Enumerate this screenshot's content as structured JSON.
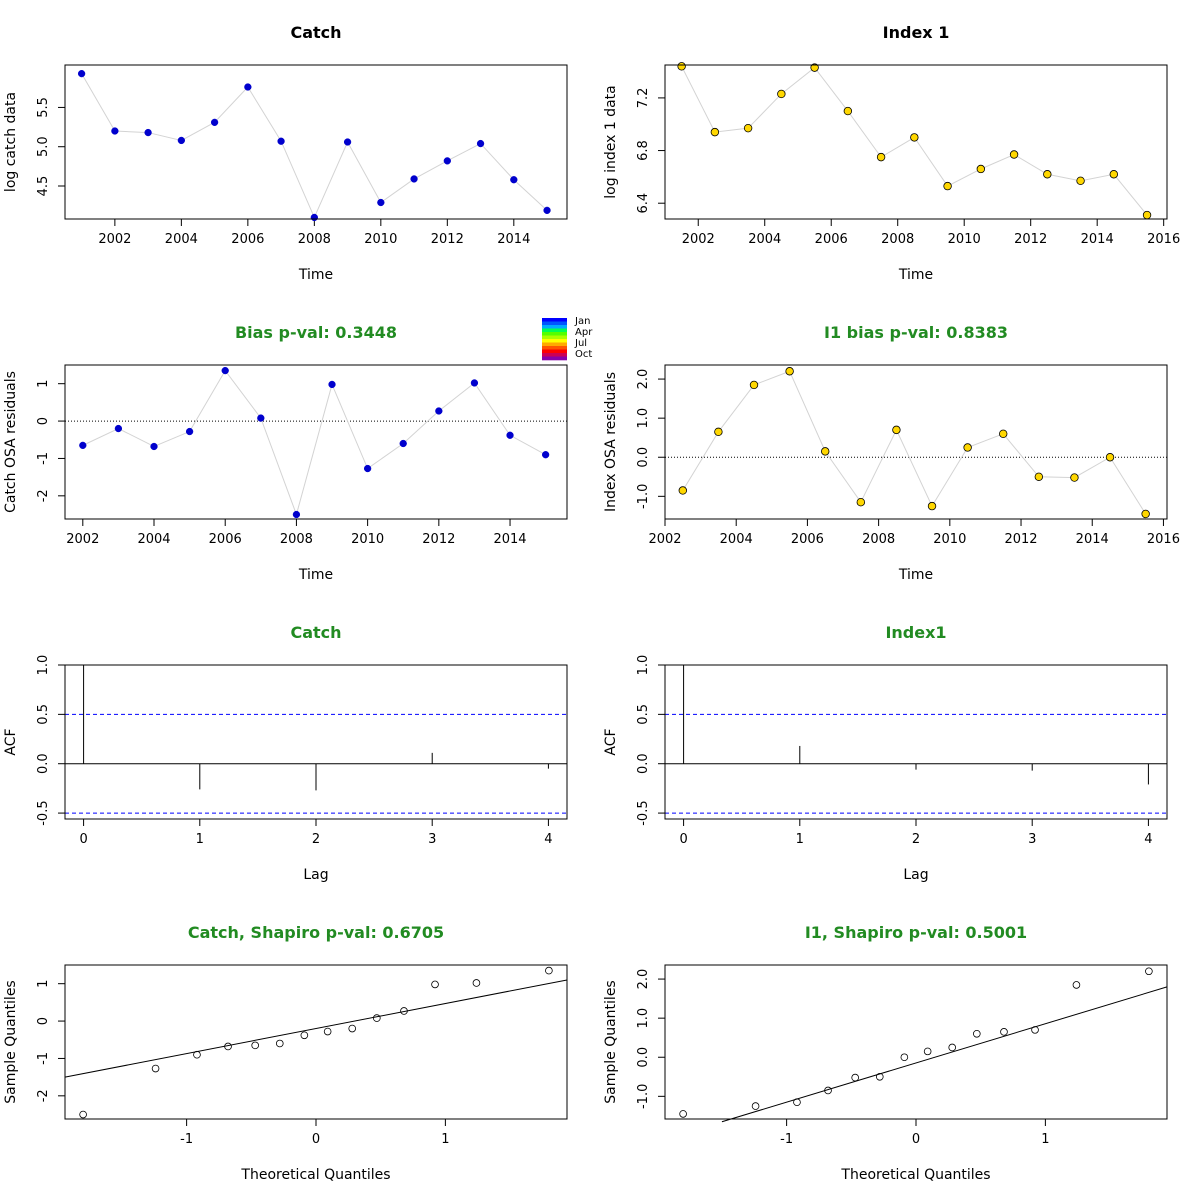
{
  "colors": {
    "catch_points": "#0000CD",
    "index_points": "#FFD700",
    "green_title": "#228B22",
    "line_grey": "#D3D3D3",
    "ci_blue": "#0000FF"
  },
  "legend": {
    "labels": [
      "Jan",
      "Apr",
      "Jul",
      "Oct"
    ],
    "colors": [
      "#0000FF",
      "#0055FF",
      "#00AAFF",
      "#00FF55",
      "#55FF00",
      "#AAFF00",
      "#FFFF00",
      "#FFAA00",
      "#FF5500",
      "#FF0000",
      "#CC0055",
      "#8800AA"
    ]
  },
  "chart_data": [
    {
      "id": "catch-data",
      "type": "line",
      "title": "Catch",
      "title_color": "#000000",
      "xlabel": "Time",
      "ylabel": "log catch data",
      "xlim": [
        2000.5,
        2015.6
      ],
      "ylim": [
        4.08,
        6.04
      ],
      "xticks": [
        2002,
        2004,
        2006,
        2008,
        2010,
        2012,
        2014
      ],
      "yticks": [
        4.5,
        5.0,
        5.5
      ],
      "ytick_labels": [
        "4.5",
        "5.0",
        "5.5"
      ],
      "x": [
        2001,
        2002,
        2003,
        2004,
        2005,
        2006,
        2007,
        2008,
        2009,
        2010,
        2011,
        2012,
        2013,
        2014,
        2015
      ],
      "y": [
        5.93,
        5.2,
        5.18,
        5.08,
        5.31,
        5.76,
        5.07,
        4.1,
        5.06,
        4.29,
        4.59,
        4.82,
        5.04,
        4.58,
        4.19
      ],
      "point_color": "#0000CD",
      "point_style": "filled"
    },
    {
      "id": "index-data",
      "type": "line",
      "title": "Index 1",
      "title_color": "#000000",
      "xlabel": "Time",
      "ylabel": "log index 1 data",
      "xlim": [
        2001.0,
        2016.1
      ],
      "ylim": [
        6.28,
        7.45
      ],
      "xticks": [
        2002,
        2004,
        2006,
        2008,
        2010,
        2012,
        2014,
        2016
      ],
      "yticks": [
        6.4,
        6.8,
        7.2
      ],
      "ytick_labels": [
        "6.4",
        "6.8",
        "7.2"
      ],
      "x": [
        2001.5,
        2002.5,
        2003.5,
        2004.5,
        2005.5,
        2006.5,
        2007.5,
        2008.5,
        2009.5,
        2010.5,
        2011.5,
        2012.5,
        2013.5,
        2014.5,
        2015.5
      ],
      "y": [
        7.44,
        6.94,
        6.97,
        7.23,
        7.43,
        7.1,
        6.75,
        6.9,
        6.53,
        6.66,
        6.77,
        6.62,
        6.57,
        6.62,
        6.31
      ],
      "point_color": "#FFD700",
      "point_style": "outlined"
    },
    {
      "id": "catch-residuals",
      "type": "line",
      "title": "Bias p-val: 0.3448",
      "title_color": "#228B22",
      "xlabel": "Time",
      "ylabel": "Catch OSA residuals",
      "xlim": [
        2001.5,
        2015.6
      ],
      "ylim": [
        -2.62,
        1.5
      ],
      "xticks": [
        2002,
        2004,
        2006,
        2008,
        2010,
        2012,
        2014
      ],
      "yticks": [
        -2,
        -1,
        0,
        1
      ],
      "ytick_labels": [
        "-2",
        "-1",
        "0",
        "1"
      ],
      "hline": 0,
      "x": [
        2002,
        2003,
        2004,
        2005,
        2006,
        2007,
        2008,
        2009,
        2010,
        2011,
        2012,
        2013,
        2014,
        2015
      ],
      "y": [
        -0.65,
        -0.2,
        -0.68,
        -0.28,
        1.35,
        0.08,
        -2.5,
        0.98,
        -1.27,
        -0.6,
        0.27,
        1.02,
        -0.38,
        -0.9
      ],
      "point_color": "#0000CD",
      "point_style": "filled"
    },
    {
      "id": "index-residuals",
      "type": "line",
      "title": "I1 bias p-val: 0.8383",
      "title_color": "#228B22",
      "xlabel": "Time",
      "ylabel": "Index OSA residuals",
      "xlim": [
        2002.0,
        2016.1
      ],
      "ylim": [
        -1.58,
        2.36
      ],
      "xticks": [
        2002,
        2004,
        2006,
        2008,
        2010,
        2012,
        2014,
        2016
      ],
      "yticks": [
        -1.0,
        0.0,
        1.0,
        2.0
      ],
      "ytick_labels": [
        "-1.0",
        "0.0",
        "1.0",
        "2.0"
      ],
      "hline": 0,
      "x": [
        2002.5,
        2003.5,
        2004.5,
        2005.5,
        2006.5,
        2007.5,
        2008.5,
        2009.5,
        2010.5,
        2011.5,
        2012.5,
        2013.5,
        2014.5,
        2015.5
      ],
      "y": [
        -0.85,
        0.65,
        1.85,
        2.2,
        0.15,
        -1.15,
        0.7,
        -1.25,
        0.25,
        0.6,
        -0.5,
        -0.52,
        0.0,
        -1.45
      ],
      "point_color": "#FFD700",
      "point_style": "outlined"
    },
    {
      "id": "catch-acf",
      "type": "acf",
      "title": "Catch",
      "title_color": "#228B22",
      "xlabel": "Lag",
      "ylabel": "ACF",
      "xlim": [
        -0.16,
        4.16
      ],
      "ylim": [
        -0.56,
        1.0
      ],
      "xticks": [
        0,
        1,
        2,
        3,
        4
      ],
      "yticks": [
        -0.5,
        0.0,
        0.5,
        1.0
      ],
      "ytick_labels": [
        "-0.5",
        "0.0",
        "0.5",
        "1.0"
      ],
      "lags": [
        0,
        1,
        2,
        3,
        4
      ],
      "acf": [
        1.0,
        -0.26,
        -0.27,
        0.11,
        -0.05
      ],
      "ci": 0.5
    },
    {
      "id": "index-acf",
      "type": "acf",
      "title": "Index1",
      "title_color": "#228B22",
      "xlabel": "Lag",
      "ylabel": "ACF",
      "xlim": [
        -0.16,
        4.16
      ],
      "ylim": [
        -0.56,
        1.0
      ],
      "xticks": [
        0,
        1,
        2,
        3,
        4
      ],
      "yticks": [
        -0.5,
        0.0,
        0.5,
        1.0
      ],
      "ytick_labels": [
        "-0.5",
        "0.0",
        "0.5",
        "1.0"
      ],
      "lags": [
        0,
        1,
        2,
        3,
        4
      ],
      "acf": [
        1.0,
        0.18,
        -0.06,
        -0.07,
        -0.21
      ],
      "ci": 0.5
    },
    {
      "id": "catch-qq",
      "type": "scatter",
      "title": "Catch, Shapiro p-val: 0.6705",
      "title_color": "#228B22",
      "xlabel": "Theoretical Quantiles",
      "ylabel": "Sample Quantiles",
      "xlim": [
        -1.94,
        1.94
      ],
      "ylim": [
        -2.62,
        1.5
      ],
      "xticks": [
        -1,
        0,
        1
      ],
      "yticks": [
        -2,
        -1,
        0,
        1
      ],
      "ytick_labels": [
        "-2",
        "-1",
        "0",
        "1"
      ],
      "x": [
        -1.8,
        -1.24,
        -0.92,
        -0.68,
        -0.47,
        -0.28,
        -0.09,
        0.09,
        0.28,
        0.47,
        0.68,
        0.92,
        1.24,
        1.8
      ],
      "y": [
        -2.5,
        -1.27,
        -0.9,
        -0.68,
        -0.65,
        -0.6,
        -0.38,
        -0.28,
        -0.2,
        0.08,
        0.27,
        0.98,
        1.02,
        1.35
      ],
      "qq_line": [
        [
          -1.94,
          -1.5
        ],
        [
          1.94,
          1.1
        ]
      ],
      "point_style": "open"
    },
    {
      "id": "index-qq",
      "type": "scatter",
      "title": "I1, Shapiro p-val: 0.5001",
      "title_color": "#228B22",
      "xlabel": "Theoretical Quantiles",
      "ylabel": "Sample Quantiles",
      "xlim": [
        -1.94,
        1.94
      ],
      "ylim": [
        -1.58,
        2.36
      ],
      "xticks": [
        -1,
        0,
        1
      ],
      "yticks": [
        -1.0,
        0.0,
        1.0,
        2.0
      ],
      "ytick_labels": [
        "-1.0",
        "0.0",
        "1.0",
        "2.0"
      ],
      "x": [
        -1.8,
        -1.24,
        -0.92,
        -0.68,
        -0.47,
        -0.28,
        -0.09,
        0.09,
        0.28,
        0.47,
        0.68,
        0.92,
        1.24,
        1.8
      ],
      "y": [
        -1.45,
        -1.25,
        -1.15,
        -0.85,
        -0.52,
        -0.5,
        0.0,
        0.15,
        0.25,
        0.6,
        0.65,
        0.7,
        1.85,
        2.2
      ],
      "qq_line": [
        [
          -1.5,
          -1.65
        ],
        [
          1.94,
          1.8
        ]
      ],
      "point_style": "open"
    }
  ]
}
